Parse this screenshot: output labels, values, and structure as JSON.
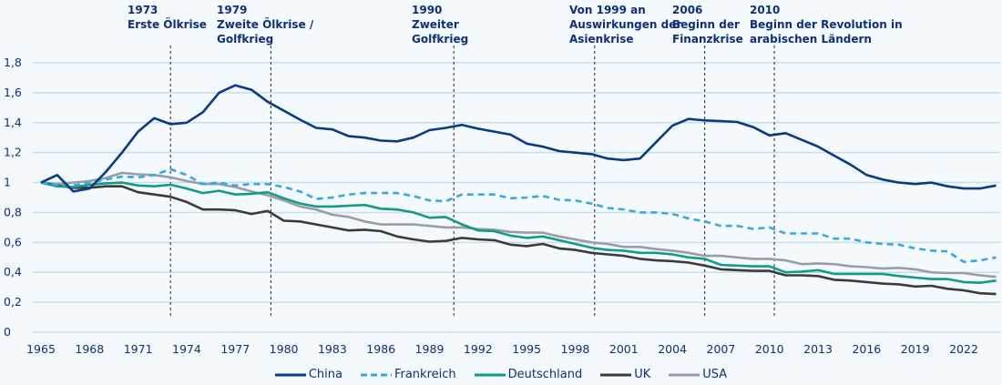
{
  "chart_data": {
    "type": "line",
    "title": "",
    "xlabel": "",
    "ylabel": "",
    "ylim": [
      0,
      1.8
    ],
    "xlim": [
      1965,
      2024
    ],
    "y_ticks": [
      "0",
      "0,2",
      "0,4",
      "0,6",
      "0,8",
      "1",
      "1,2",
      "1,4",
      "1,6",
      "1,8"
    ],
    "x_ticks": [
      "1965",
      "1968",
      "1971",
      "1974",
      "1977",
      "1980",
      "1983",
      "1986",
      "1989",
      "1992",
      "1995",
      "1998",
      "2001",
      "2004",
      "2007",
      "2010",
      "2013",
      "2016",
      "2019",
      "2022"
    ],
    "grid": true,
    "legend_position": "bottom",
    "x": [
      1965,
      1966,
      1967,
      1968,
      1969,
      1970,
      1971,
      1972,
      1973,
      1974,
      1975,
      1976,
      1977,
      1978,
      1979,
      1980,
      1981,
      1982,
      1983,
      1984,
      1985,
      1986,
      1987,
      1988,
      1989,
      1990,
      1991,
      1992,
      1993,
      1994,
      1995,
      1996,
      1997,
      1998,
      1999,
      2000,
      2001,
      2002,
      2003,
      2004,
      2005,
      2006,
      2007,
      2008,
      2009,
      2010,
      2011,
      2012,
      2013,
      2014,
      2015,
      2016,
      2017,
      2018,
      2019,
      2020,
      2021,
      2022,
      2023,
      2024
    ],
    "series": [
      {
        "name": "China",
        "color": "#0b3a82",
        "dash": false,
        "values": [
          1.0,
          1.05,
          0.94,
          0.96,
          1.07,
          1.2,
          1.34,
          1.43,
          1.39,
          1.4,
          1.47,
          1.6,
          1.65,
          1.62,
          1.54,
          1.48,
          1.42,
          1.365,
          1.355,
          1.31,
          1.3,
          1.28,
          1.275,
          1.3,
          1.35,
          1.365,
          1.385,
          1.36,
          1.34,
          1.32,
          1.26,
          1.24,
          1.21,
          1.2,
          1.19,
          1.16,
          1.15,
          1.16,
          1.27,
          1.38,
          1.425,
          1.415,
          1.41,
          1.405,
          1.37,
          1.315,
          1.33,
          1.285,
          1.24,
          1.18,
          1.12,
          1.05,
          1.02,
          1.0,
          0.99,
          1.0,
          0.975,
          0.96,
          0.96,
          0.98
        ]
      },
      {
        "name": "Frankreich",
        "color": "#3aa8dd",
        "dash": true,
        "values": [
          1.0,
          0.985,
          0.98,
          1.0,
          1.02,
          1.04,
          1.035,
          1.05,
          1.09,
          1.05,
          0.99,
          1.0,
          0.98,
          0.99,
          0.99,
          0.97,
          0.94,
          0.89,
          0.9,
          0.92,
          0.93,
          0.93,
          0.93,
          0.91,
          0.88,
          0.875,
          0.92,
          0.92,
          0.92,
          0.895,
          0.9,
          0.91,
          0.885,
          0.88,
          0.86,
          0.83,
          0.82,
          0.8,
          0.8,
          0.79,
          0.76,
          0.74,
          0.71,
          0.71,
          0.69,
          0.7,
          0.66,
          0.66,
          0.66,
          0.625,
          0.625,
          0.6,
          0.59,
          0.585,
          0.56,
          0.545,
          0.54,
          0.47,
          0.48,
          0.5
        ]
      },
      {
        "name": "Deutschland",
        "color": "#139a88",
        "dash": false,
        "values": [
          1.0,
          0.975,
          0.97,
          0.985,
          0.995,
          1.0,
          0.98,
          0.975,
          0.985,
          0.96,
          0.93,
          0.945,
          0.92,
          0.925,
          0.935,
          0.895,
          0.86,
          0.84,
          0.84,
          0.845,
          0.85,
          0.825,
          0.82,
          0.8,
          0.765,
          0.77,
          0.72,
          0.68,
          0.675,
          0.645,
          0.63,
          0.64,
          0.615,
          0.59,
          0.565,
          0.55,
          0.545,
          0.53,
          0.53,
          0.52,
          0.5,
          0.49,
          0.45,
          0.445,
          0.44,
          0.44,
          0.4,
          0.405,
          0.415,
          0.39,
          0.39,
          0.39,
          0.39,
          0.375,
          0.365,
          0.355,
          0.355,
          0.335,
          0.33,
          0.345
        ]
      },
      {
        "name": "UK",
        "color": "#3d3a3a",
        "dash": false,
        "values": [
          1.0,
          0.98,
          0.965,
          0.965,
          0.975,
          0.975,
          0.935,
          0.92,
          0.905,
          0.87,
          0.82,
          0.82,
          0.815,
          0.79,
          0.81,
          0.745,
          0.74,
          0.72,
          0.7,
          0.68,
          0.685,
          0.675,
          0.64,
          0.62,
          0.605,
          0.61,
          0.63,
          0.62,
          0.615,
          0.585,
          0.575,
          0.59,
          0.56,
          0.55,
          0.53,
          0.52,
          0.51,
          0.49,
          0.48,
          0.475,
          0.465,
          0.445,
          0.42,
          0.415,
          0.41,
          0.41,
          0.38,
          0.38,
          0.375,
          0.35,
          0.345,
          0.335,
          0.325,
          0.32,
          0.305,
          0.31,
          0.29,
          0.28,
          0.26,
          0.255
        ]
      },
      {
        "name": "USA",
        "color": "#9c9ca8",
        "dash": false,
        "values": [
          1.0,
          0.99,
          1.0,
          1.01,
          1.03,
          1.065,
          1.055,
          1.05,
          1.035,
          1.01,
          0.99,
          0.99,
          0.97,
          0.94,
          0.915,
          0.88,
          0.84,
          0.82,
          0.785,
          0.77,
          0.74,
          0.72,
          0.72,
          0.72,
          0.71,
          0.7,
          0.7,
          0.69,
          0.685,
          0.67,
          0.665,
          0.665,
          0.64,
          0.62,
          0.6,
          0.59,
          0.57,
          0.57,
          0.555,
          0.545,
          0.53,
          0.51,
          0.51,
          0.5,
          0.49,
          0.49,
          0.48,
          0.455,
          0.46,
          0.455,
          0.44,
          0.435,
          0.425,
          0.43,
          0.42,
          0.4,
          0.395,
          0.395,
          0.38,
          0.37
        ]
      }
    ],
    "annotations": [
      {
        "year": 1973,
        "lines": [
          "1973",
          "Erste Ölkrise"
        ]
      },
      {
        "year": 1979,
        "lines": [
          "1979",
          "Zweite Ölkrise /",
          "Golfkrieg"
        ]
      },
      {
        "year": 1990,
        "lines": [
          "1990",
          "Zweiter",
          "Golfkrieg"
        ]
      },
      {
        "year": 1999,
        "lines": [
          "Von 1999 an",
          "Auswirkungen der",
          "Asienkrise"
        ]
      },
      {
        "year": 2006,
        "lines": [
          "2006",
          "Beginn der",
          "Finanzkrise"
        ]
      },
      {
        "year": 2010,
        "lines": [
          "2010",
          "Beginn der Revolution in",
          "arabischen Ländern"
        ]
      }
    ],
    "grid_color": "#c8dde8",
    "text_color": "#0f2f78"
  }
}
